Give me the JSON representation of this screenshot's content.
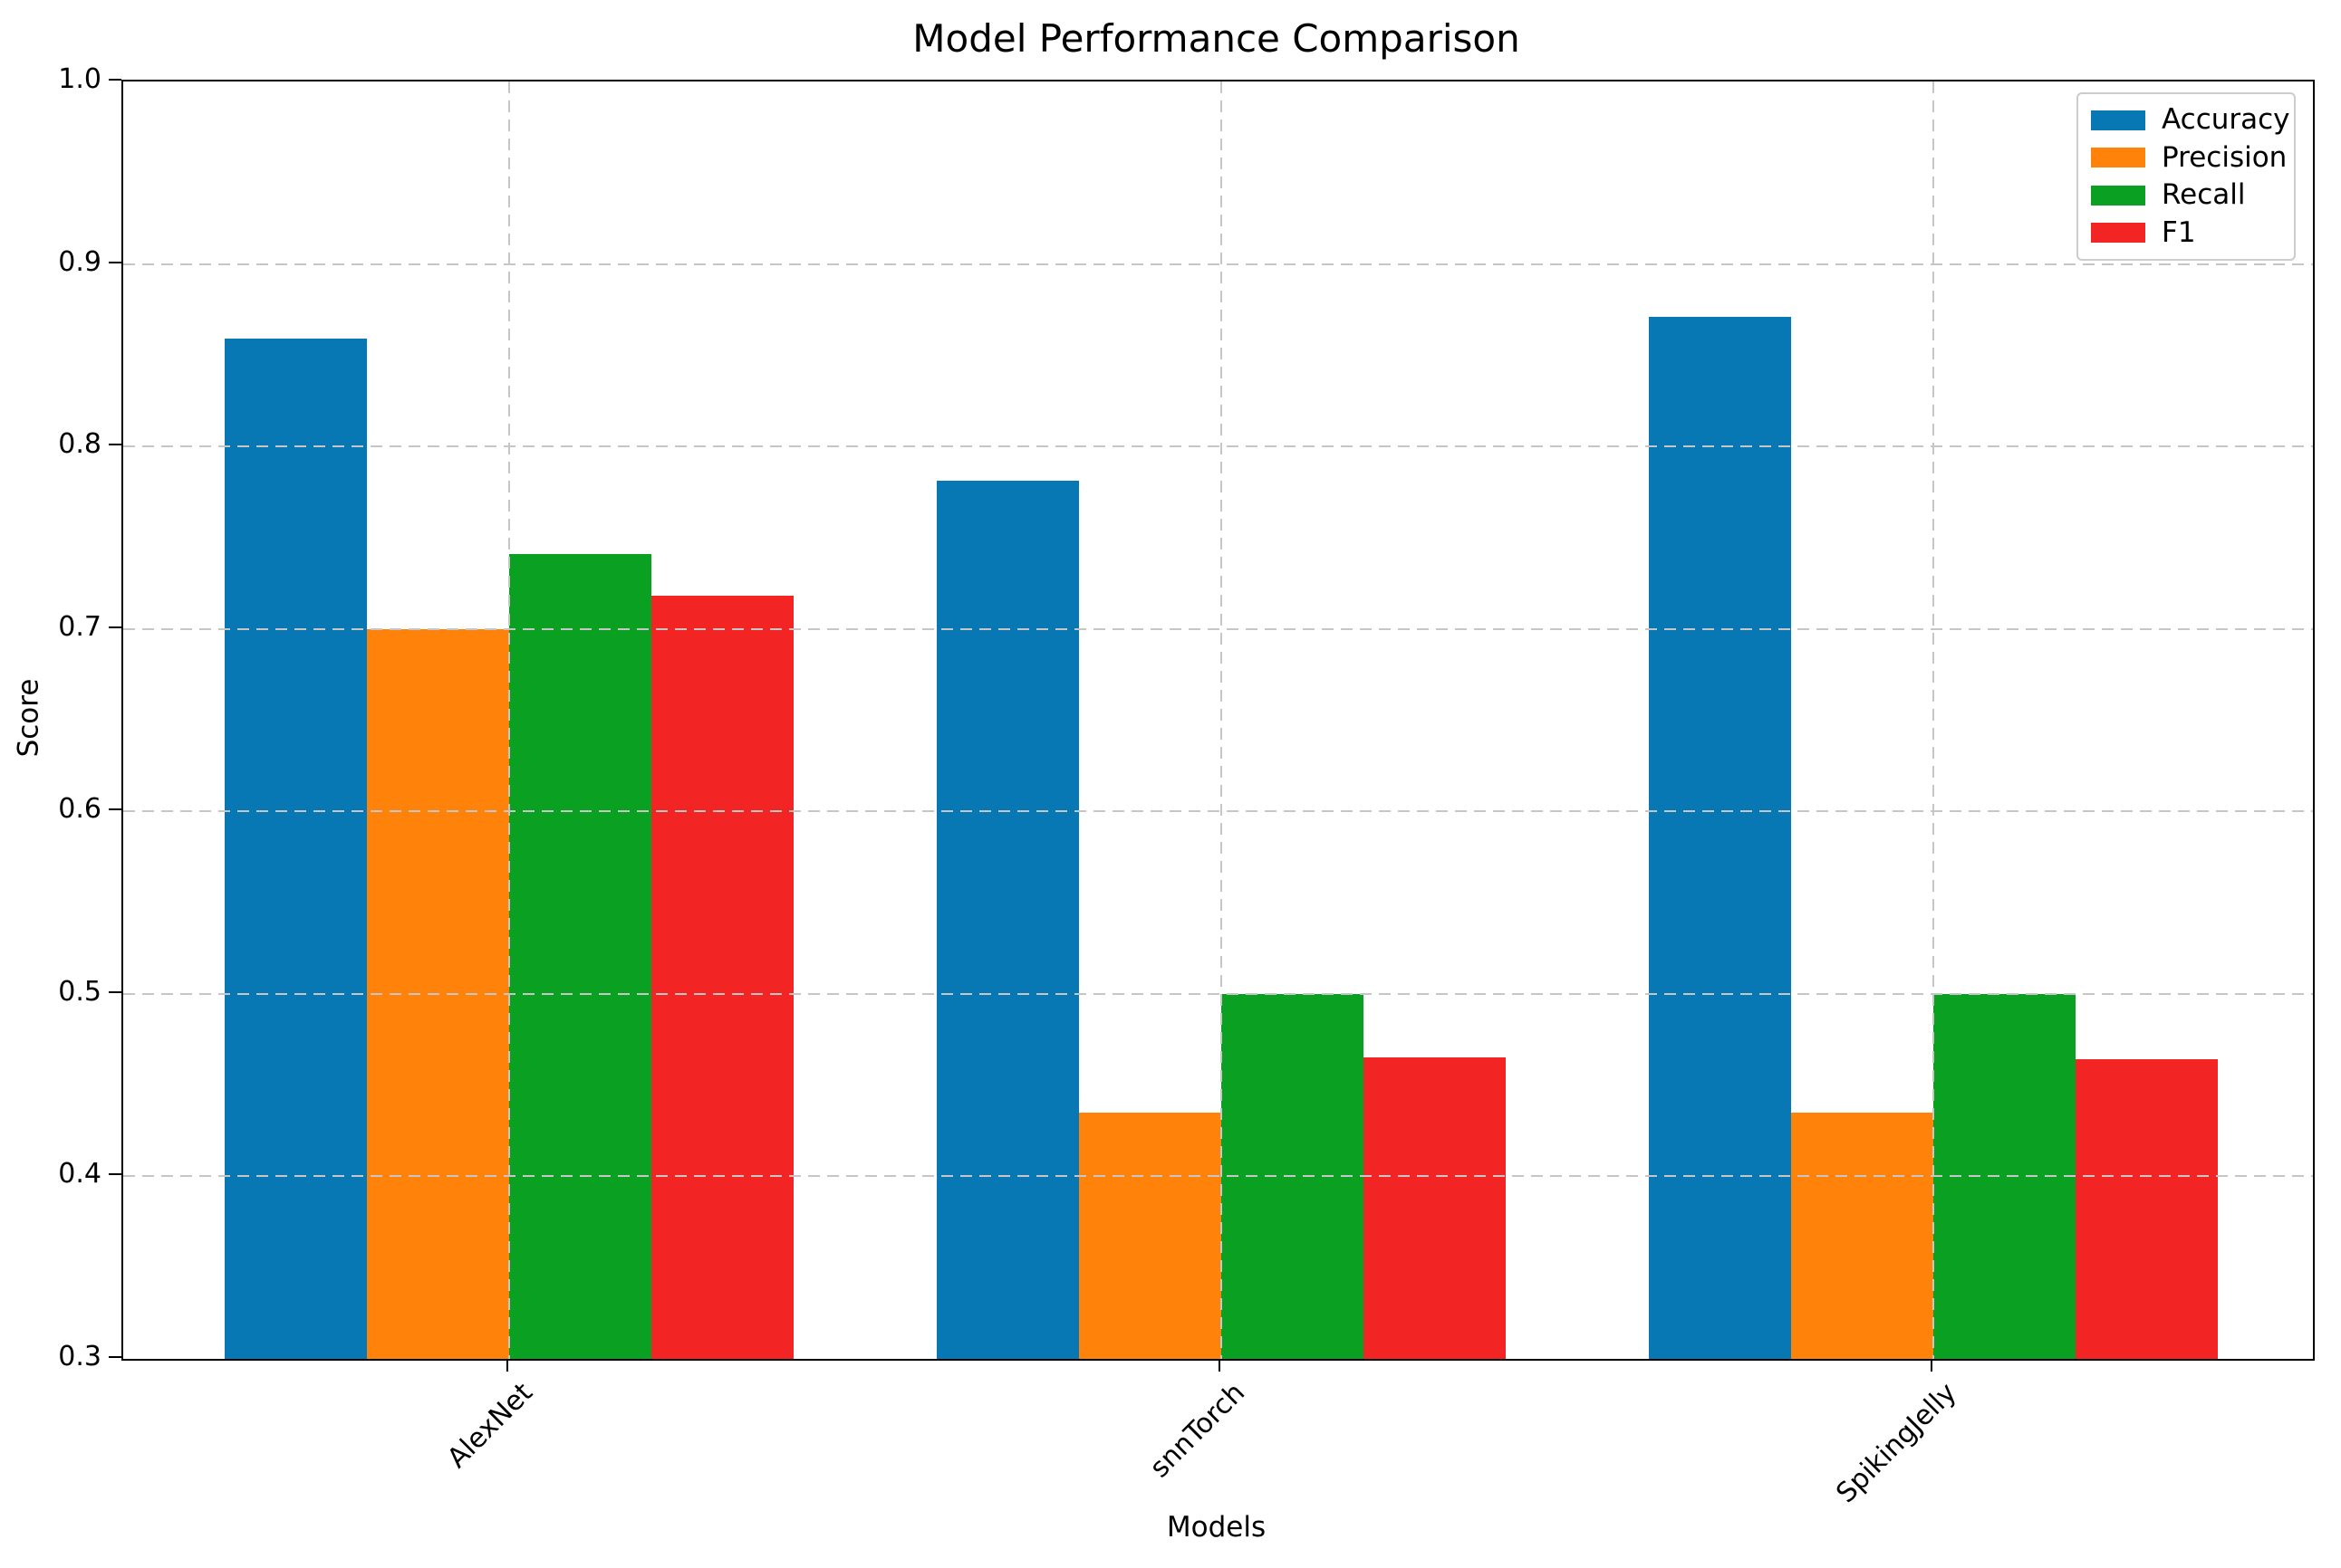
{
  "figure": {
    "title": "Model Performance Comparison"
  },
  "chart_data": {
    "type": "bar",
    "title": "Model Performance Comparison",
    "xlabel": "Models",
    "ylabel": "Score",
    "categories": [
      "AlexNet",
      "snnTorch",
      "SpikingJelly"
    ],
    "series": [
      {
        "name": "Accuracy",
        "color": "#0878b4",
        "values": [
          0.859,
          0.781,
          0.871
        ]
      },
      {
        "name": "Precision",
        "color": "#ff830a",
        "values": [
          0.7,
          0.435,
          0.435
        ]
      },
      {
        "name": "Recall",
        "color": "#0aa022",
        "values": [
          0.741,
          0.5,
          0.5
        ]
      },
      {
        "name": "F1",
        "color": "#f32424",
        "values": [
          0.718,
          0.465,
          0.464
        ]
      }
    ],
    "ylim": [
      0.3,
      1.0
    ],
    "ytick_step": 0.1,
    "yticks": [
      "0.3",
      "0.4",
      "0.5",
      "0.6",
      "0.7",
      "0.8",
      "0.9",
      "1.0"
    ],
    "grid": true,
    "grid_style": "dashed",
    "grid_above_bars": true,
    "legend_position": "upper right",
    "legend_entries": [
      "Accuracy",
      "Precision",
      "Recall",
      "F1"
    ],
    "xtick_rotation_deg": 45
  }
}
